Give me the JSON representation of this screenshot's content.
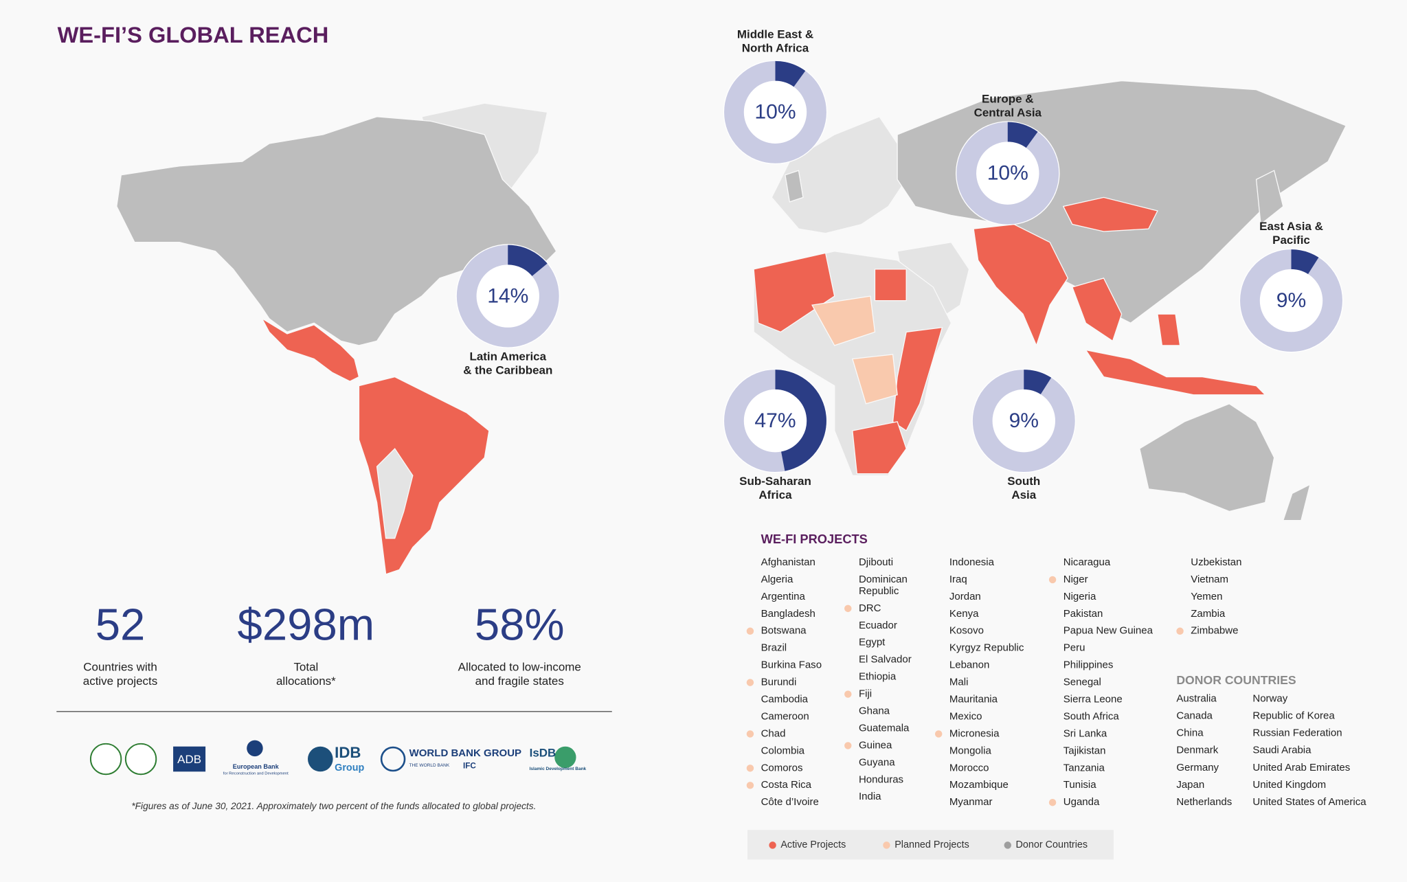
{
  "title": "WE-FI’S GLOBAL REACH",
  "regions": [
    {
      "name": [
        "Latin America",
        "& the Caribbean"
      ],
      "value": 14,
      "value_label": "14%"
    },
    {
      "name": [
        "Middle East &",
        "North Africa"
      ],
      "value": 10,
      "value_label": "10%"
    },
    {
      "name": [
        "Europe &",
        "Central Asia"
      ],
      "value": 10,
      "value_label": "10%"
    },
    {
      "name": [
        "East Asia &",
        "Pacific"
      ],
      "value": 9,
      "value_label": "9%"
    },
    {
      "name": [
        "Sub-Saharan",
        "Africa"
      ],
      "value": 47,
      "value_label": "47%"
    },
    {
      "name": [
        "South",
        "Asia"
      ],
      "value": 9,
      "value_label": "9%"
    }
  ],
  "stats": [
    {
      "value": "52",
      "label": [
        "Countries with",
        "active projects"
      ]
    },
    {
      "value": "$298m",
      "label": [
        "Total",
        "allocations*"
      ]
    },
    {
      "value": "58%",
      "label": [
        "Allocated to low-income",
        "and fragile states"
      ]
    }
  ],
  "logos": [
    "ADB",
    "European Bank",
    "for Reconstruction and Development",
    "IDB",
    "Group",
    "WORLD BANK GROUP",
    "THE WORLD BANK",
    "IFC",
    "IsDB",
    "Islamic Development Bank"
  ],
  "footnote": "*Figures as of June 30, 2021. Approximately two percent of the funds allocated to global projects.",
  "projects": {
    "title": "WE-FI PROJECTS",
    "columns": [
      [
        {
          "name": "Afghanistan"
        },
        {
          "name": "Algeria"
        },
        {
          "name": "Argentina"
        },
        {
          "name": "Bangladesh"
        },
        {
          "name": "Botswana",
          "planned": true
        },
        {
          "name": "Brazil"
        },
        {
          "name": "Burkina Faso"
        },
        {
          "name": "Burundi",
          "planned": true
        },
        {
          "name": "Cambodia"
        },
        {
          "name": "Cameroon"
        },
        {
          "name": "Chad",
          "planned": true
        },
        {
          "name": "Colombia"
        },
        {
          "name": "Comoros",
          "planned": true
        },
        {
          "name": "Costa Rica",
          "planned": true
        },
        {
          "name": "Côte d’Ivoire"
        }
      ],
      [
        {
          "name": "Djibouti"
        },
        {
          "name": [
            "Dominican",
            "Republic"
          ]
        },
        {
          "name": "DRC",
          "planned": true
        },
        {
          "name": "Ecuador"
        },
        {
          "name": "Egypt"
        },
        {
          "name": "El Salvador"
        },
        {
          "name": "Ethiopia"
        },
        {
          "name": "Fiji",
          "planned": true
        },
        {
          "name": "Ghana"
        },
        {
          "name": "Guatemala"
        },
        {
          "name": "Guinea",
          "planned": true
        },
        {
          "name": "Guyana"
        },
        {
          "name": "Honduras"
        },
        {
          "name": "India"
        }
      ],
      [
        {
          "name": "Indonesia"
        },
        {
          "name": "Iraq"
        },
        {
          "name": "Jordan"
        },
        {
          "name": "Kenya"
        },
        {
          "name": "Kosovo"
        },
        {
          "name": "Kyrgyz Republic"
        },
        {
          "name": "Lebanon"
        },
        {
          "name": "Mali"
        },
        {
          "name": "Mauritania"
        },
        {
          "name": "Mexico"
        },
        {
          "name": "Micronesia",
          "planned": true
        },
        {
          "name": "Mongolia"
        },
        {
          "name": "Morocco"
        },
        {
          "name": "Mozambique"
        },
        {
          "name": "Myanmar"
        }
      ],
      [
        {
          "name": "Nicaragua"
        },
        {
          "name": "Niger",
          "planned": true
        },
        {
          "name": "Nigeria"
        },
        {
          "name": "Pakistan"
        },
        {
          "name": "Papua New Guinea"
        },
        {
          "name": "Peru"
        },
        {
          "name": "Philippines"
        },
        {
          "name": "Senegal"
        },
        {
          "name": "Sierra Leone"
        },
        {
          "name": "South Africa"
        },
        {
          "name": "Sri Lanka"
        },
        {
          "name": "Tajikistan"
        },
        {
          "name": "Tanzania"
        },
        {
          "name": "Tunisia"
        },
        {
          "name": "Uganda",
          "planned": true
        }
      ],
      [
        {
          "name": "Uzbekistan"
        },
        {
          "name": "Vietnam"
        },
        {
          "name": "Yemen"
        },
        {
          "name": "Zambia"
        },
        {
          "name": "Zimbabwe",
          "planned": true
        }
      ]
    ]
  },
  "donors": {
    "title": "DONOR COUNTRIES",
    "columns": [
      [
        "Australia",
        "Canada",
        "China",
        "Denmark",
        "Germany",
        "Japan",
        "Netherlands"
      ],
      [
        "Norway",
        "Republic of Korea",
        "Russian Federation",
        "Saudi Arabia",
        "United Arab Emirates",
        "United Kingdom",
        "United States of America"
      ]
    ]
  },
  "legend": [
    {
      "label": "Active Projects",
      "color": "#ee6352"
    },
    {
      "label": "Planned Projects",
      "color": "#f9c9ad"
    },
    {
      "label": "Donor Countries",
      "color": "#9e9e9e"
    }
  ]
}
